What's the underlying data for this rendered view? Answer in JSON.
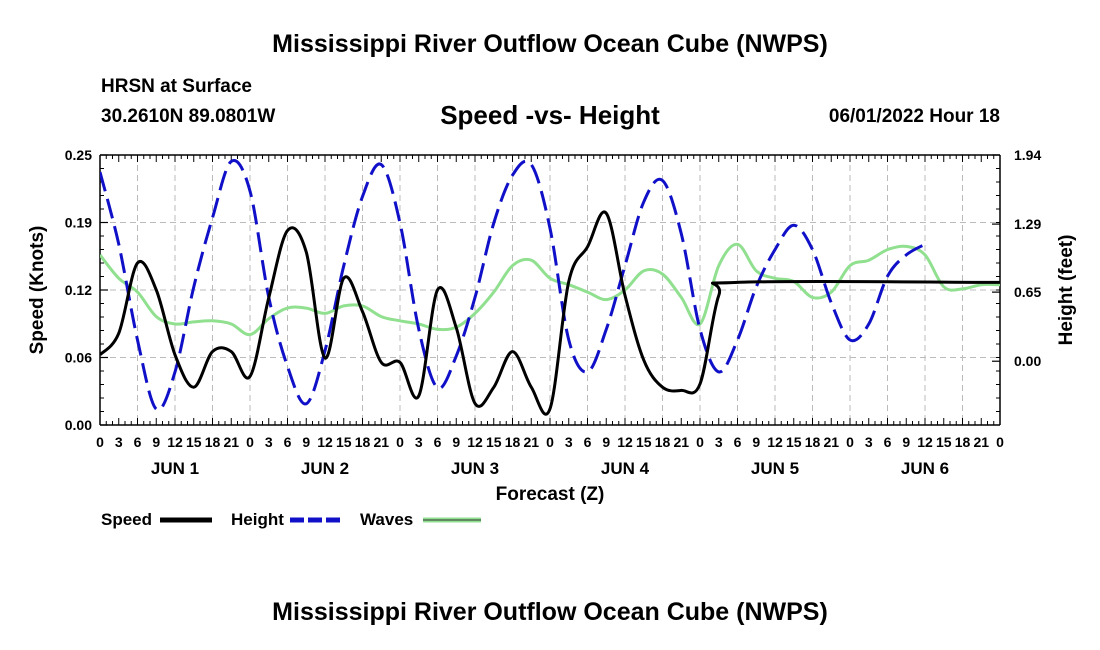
{
  "header": {
    "title": "Mississippi River Outflow Ocean Cube (NWPS)",
    "station": "HRSN at Surface",
    "coords": "30.2610N  89.0801W",
    "subtitle": "Speed -vs- Height",
    "datetime": "06/01/2022 Hour 18"
  },
  "footer": {
    "title": "Mississippi River Outflow Ocean Cube (NWPS)"
  },
  "chart_data": {
    "type": "line",
    "xlabel": "Forecast (Z)",
    "ylabel": "Speed (Knots)",
    "y2label": "Height (feet)",
    "xlim": [
      0,
      144
    ],
    "ylim": [
      0,
      0.25
    ],
    "y2lim": [
      -0.6,
      1.94
    ],
    "grid": true,
    "x_tick_labels": [
      "0",
      "3",
      "6",
      "9",
      "12",
      "15",
      "18",
      "21",
      "0",
      "3",
      "6",
      "9",
      "12",
      "15",
      "18",
      "21",
      "0",
      "3",
      "6",
      "9",
      "12",
      "15",
      "18",
      "21",
      "0",
      "3",
      "6",
      "9",
      "12",
      "15",
      "18",
      "21",
      "0",
      "3",
      "6",
      "9",
      "12",
      "15",
      "18",
      "21",
      "0",
      "3",
      "6",
      "9",
      "12",
      "15",
      "18",
      "21",
      "0"
    ],
    "day_labels": [
      "JUN 1",
      "JUN 2",
      "JUN 3",
      "JUN 4",
      "JUN 5",
      "JUN 6"
    ],
    "y_ticks": [
      "0.00",
      "0.06",
      "0.12",
      "0.19",
      "0.25"
    ],
    "y2_ticks": [
      "0.00",
      "0.65",
      "1.29",
      "1.94"
    ],
    "legend": [
      {
        "name": "Speed",
        "color": "#000000",
        "style": "solid"
      },
      {
        "name": "Height",
        "color": "#1010c8",
        "style": "dashed"
      },
      {
        "name": "Waves",
        "color": "#90e090",
        "style": "solid"
      }
    ],
    "series": [
      {
        "name": "Speed",
        "axis": "left",
        "color": "#000000",
        "dash": false,
        "points": [
          [
            0,
            0.065
          ],
          [
            3,
            0.085
          ],
          [
            6,
            0.15
          ],
          [
            9,
            0.125
          ],
          [
            12,
            0.065
          ],
          [
            15,
            0.035
          ],
          [
            18,
            0.068
          ],
          [
            21,
            0.068
          ],
          [
            24,
            0.045
          ],
          [
            27,
            0.118
          ],
          [
            30,
            0.18
          ],
          [
            33,
            0.16
          ],
          [
            36,
            0.062
          ],
          [
            39,
            0.136
          ],
          [
            42,
            0.105
          ],
          [
            45,
            0.058
          ],
          [
            48,
            0.058
          ],
          [
            51,
            0.027
          ],
          [
            54,
            0.125
          ],
          [
            57,
            0.09
          ],
          [
            60,
            0.02
          ],
          [
            63,
            0.035
          ],
          [
            66,
            0.068
          ],
          [
            69,
            0.035
          ],
          [
            72,
            0.015
          ],
          [
            75,
            0.133
          ],
          [
            78,
            0.165
          ],
          [
            81,
            0.196
          ],
          [
            84,
            0.12
          ],
          [
            87,
            0.06
          ],
          [
            90,
            0.035
          ],
          [
            93,
            0.032
          ],
          [
            96,
            0.038
          ],
          [
            99,
            0.12
          ],
          [
            102,
            0.132
          ],
          [
            144,
            0.132
          ]
        ]
      },
      {
        "name": "Height",
        "axis": "right",
        "color": "#1010c8",
        "dash": true,
        "points": [
          [
            0,
            1.78
          ],
          [
            3,
            1.1
          ],
          [
            6,
            0.2
          ],
          [
            9,
            -0.45
          ],
          [
            12,
            -0.1
          ],
          [
            15,
            0.7
          ],
          [
            18,
            1.35
          ],
          [
            21,
            1.88
          ],
          [
            24,
            1.6
          ],
          [
            27,
            0.6
          ],
          [
            30,
            -0.05
          ],
          [
            33,
            -0.4
          ],
          [
            36,
            0.1
          ],
          [
            39,
            0.9
          ],
          [
            42,
            1.55
          ],
          [
            45,
            1.85
          ],
          [
            48,
            1.3
          ],
          [
            51,
            0.3
          ],
          [
            54,
            -0.25
          ],
          [
            57,
            0.05
          ],
          [
            60,
            0.6
          ],
          [
            63,
            1.3
          ],
          [
            66,
            1.75
          ],
          [
            69,
            1.85
          ],
          [
            72,
            1.25
          ],
          [
            75,
            0.2
          ],
          [
            78,
            -0.1
          ],
          [
            81,
            0.3
          ],
          [
            84,
            0.9
          ],
          [
            87,
            1.5
          ],
          [
            90,
            1.7
          ],
          [
            93,
            1.2
          ],
          [
            96,
            0.3
          ],
          [
            99,
            -0.1
          ],
          [
            102,
            0.2
          ],
          [
            105,
            0.7
          ],
          [
            108,
            1.05
          ],
          [
            111,
            1.28
          ],
          [
            114,
            1.05
          ],
          [
            117,
            0.55
          ],
          [
            120,
            0.2
          ],
          [
            123,
            0.35
          ],
          [
            126,
            0.8
          ],
          [
            129,
            1.0
          ],
          [
            132,
            1.1
          ]
        ]
      },
      {
        "name": "Waves",
        "axis": "right",
        "color": "#90e090",
        "dash": false,
        "points": [
          [
            0,
            1.0
          ],
          [
            3,
            0.78
          ],
          [
            6,
            0.65
          ],
          [
            9,
            0.42
          ],
          [
            12,
            0.35
          ],
          [
            15,
            0.37
          ],
          [
            18,
            0.38
          ],
          [
            21,
            0.35
          ],
          [
            24,
            0.25
          ],
          [
            27,
            0.4
          ],
          [
            30,
            0.5
          ],
          [
            33,
            0.5
          ],
          [
            36,
            0.45
          ],
          [
            39,
            0.52
          ],
          [
            42,
            0.52
          ],
          [
            45,
            0.42
          ],
          [
            48,
            0.38
          ],
          [
            51,
            0.35
          ],
          [
            54,
            0.3
          ],
          [
            57,
            0.32
          ],
          [
            60,
            0.45
          ],
          [
            63,
            0.65
          ],
          [
            66,
            0.9
          ],
          [
            69,
            0.95
          ],
          [
            72,
            0.78
          ],
          [
            75,
            0.72
          ],
          [
            78,
            0.65
          ],
          [
            81,
            0.58
          ],
          [
            84,
            0.67
          ],
          [
            87,
            0.85
          ],
          [
            90,
            0.82
          ],
          [
            93,
            0.6
          ],
          [
            96,
            0.35
          ],
          [
            99,
            0.9
          ],
          [
            102,
            1.1
          ],
          [
            105,
            0.85
          ],
          [
            108,
            0.78
          ],
          [
            111,
            0.75
          ],
          [
            114,
            0.6
          ],
          [
            117,
            0.65
          ],
          [
            120,
            0.9
          ],
          [
            123,
            0.95
          ],
          [
            126,
            1.05
          ],
          [
            129,
            1.08
          ],
          [
            132,
            1.0
          ],
          [
            135,
            0.7
          ],
          [
            138,
            0.68
          ],
          [
            141,
            0.72
          ],
          [
            144,
            0.72
          ]
        ]
      }
    ]
  }
}
